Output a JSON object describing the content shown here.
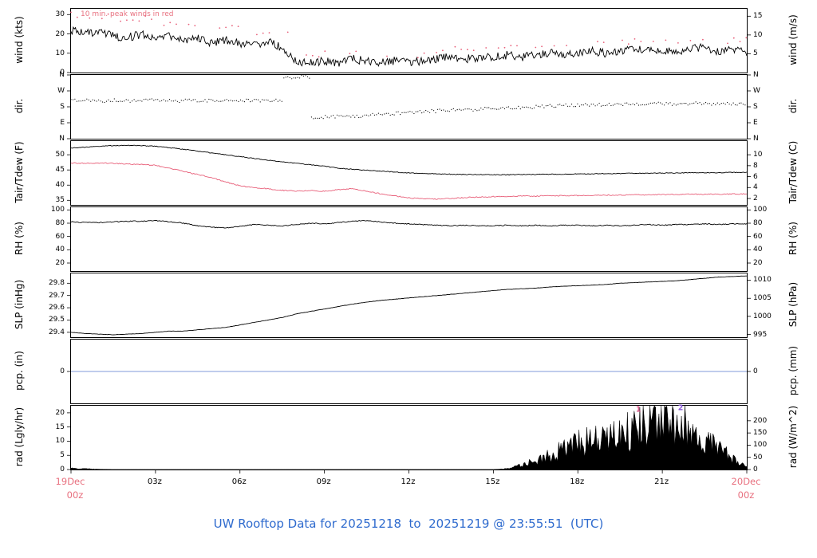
{
  "title": "UW Rooftop Data for 20251218  to  20251219 @ 23:55:51  (UTC)",
  "colors": {
    "title": "#2f6bce",
    "dates": "#e8707f",
    "peak_note": "#e8707f",
    "trace_black": "#000000",
    "dew_red": "#e8607a",
    "pcp_blue": "#8098d8"
  },
  "x_axis": {
    "ticks": [
      {
        "h": 3,
        "label": "03z"
      },
      {
        "h": 6,
        "label": "06z"
      },
      {
        "h": 9,
        "label": "09z"
      },
      {
        "h": 12,
        "label": "12z"
      },
      {
        "h": 15,
        "label": "15z"
      },
      {
        "h": 18,
        "label": "18z"
      },
      {
        "h": 21,
        "label": "21z"
      }
    ],
    "axis_tick_hours": [
      0,
      3,
      6,
      9,
      12,
      15,
      18,
      21,
      24
    ],
    "start_date": "19Dec",
    "start_time": "00z",
    "end_date": "20Dec",
    "end_time": "00z"
  },
  "chart_data": {
    "type": "line",
    "panels": [
      {
        "name": "wind",
        "left_label": "wind (kts)",
        "right_label": "wind (m/s)",
        "note": "10 min. peak winds in red",
        "ylim": [
          0,
          33
        ],
        "left_ticks": [
          {
            "v": 0,
            "label": "0"
          },
          {
            "v": 10,
            "label": "10"
          },
          {
            "v": 20,
            "label": "20"
          },
          {
            "v": 30,
            "label": "30"
          }
        ],
        "right_ticks": [
          {
            "v": 9.72,
            "label": "5"
          },
          {
            "v": 19.44,
            "label": "10"
          },
          {
            "v": 29.16,
            "label": "15"
          }
        ],
        "series": [
          {
            "name": "wind_speed_kts",
            "type": "line",
            "color": "#000000",
            "noise": 2.2,
            "values": [
              22,
              20,
              21,
              19,
              18,
              20,
              17,
              19,
              16,
              18,
              15,
              17,
              15,
              14,
              16,
              13,
              6,
              5,
              6,
              5,
              7,
              6,
              5,
              6,
              5,
              6,
              7,
              8,
              7,
              8,
              8,
              9,
              8,
              9,
              10,
              9,
              10,
              11,
              10,
              11,
              12,
              11,
              12,
              11,
              12,
              13,
              11,
              12,
              10
            ]
          },
          {
            "name": "peak_wind_kts",
            "type": "dots",
            "color": "#e8607a",
            "noise": 1.5,
            "dot_step": 0.22,
            "sparse": true,
            "r": 0.9,
            "values": [
              30,
              28,
              29,
              27,
              26,
              28,
              25,
              26,
              24,
              25,
              23,
              24,
              22,
              21,
              22,
              20,
              10,
              9,
              10,
              9,
              11,
              10,
              9,
              10,
              9,
              10,
              11,
              12,
              11,
              12,
              12,
              13,
              12,
              14,
              15,
              14,
              15,
              16,
              15,
              16,
              17,
              16,
              17,
              16,
              17,
              18,
              16,
              17,
              15
            ]
          }
        ]
      },
      {
        "name": "direction",
        "left_label": "dir.",
        "right_label": "dir.",
        "ylim": [
          0,
          360
        ],
        "left_ticks": [
          {
            "v": 0,
            "label": "N"
          },
          {
            "v": 90,
            "label": "E"
          },
          {
            "v": 180,
            "label": "S"
          },
          {
            "v": 270,
            "label": "W"
          },
          {
            "v": 360,
            "label": "N"
          }
        ],
        "right_ticks": [
          {
            "v": 0,
            "label": "N"
          },
          {
            "v": 90,
            "label": "E"
          },
          {
            "v": 180,
            "label": "S"
          },
          {
            "v": 270,
            "label": "W"
          },
          {
            "v": 360,
            "label": "N"
          }
        ],
        "series": [
          {
            "name": "wind_dir_deg",
            "type": "dots",
            "color": "#000000",
            "noise": 9,
            "dot_step": 0.07,
            "r": 0.6,
            "values": [
              215,
              218,
              213,
              216,
              214,
              217,
              215,
              212,
              216,
              214,
              213,
              217,
              215,
              214,
              216,
              345,
              350,
              120,
              125,
              130,
              128,
              135,
              140,
              145,
              150,
              155,
              158,
              162,
              165,
              170,
              172,
              175,
              178,
              182,
              185,
              188,
              190,
              192,
              195,
              193,
              196,
              198,
              195,
              197,
              199,
              196,
              198,
              197,
              195
            ]
          }
        ]
      },
      {
        "name": "temperature",
        "left_label": "Tair/Tdew (F)",
        "right_label": "Tair/Tdew (C)",
        "ylim": [
          33.5,
          54.5
        ],
        "left_ticks": [
          {
            "v": 35,
            "label": "35"
          },
          {
            "v": 40,
            "label": "40"
          },
          {
            "v": 45,
            "label": "45"
          },
          {
            "v": 50,
            "label": "50"
          }
        ],
        "right_ticks": [
          {
            "v": 35.6,
            "label": "2"
          },
          {
            "v": 39.2,
            "label": "4"
          },
          {
            "v": 42.8,
            "label": "6"
          },
          {
            "v": 46.4,
            "label": "8"
          },
          {
            "v": 50,
            "label": "10"
          }
        ],
        "series": [
          {
            "name": "tair_f",
            "type": "line",
            "color": "#000000",
            "noise": 0.12,
            "values": [
              52.2,
              52.5,
              52.8,
              53.0,
              53.1,
              53.0,
              52.8,
              52.3,
              51.8,
              51.2,
              50.6,
              50.0,
              49.4,
              48.8,
              48.2,
              47.7,
              47.2,
              46.7,
              46.2,
              45.6,
              45.2,
              44.9,
              44.6,
              44.3,
              44.0,
              43.8,
              43.7,
              43.6,
              43.5,
              43.5,
              43.4,
              43.4,
              43.5,
              43.5,
              43.6,
              43.6,
              43.7,
              43.7,
              43.8,
              43.8,
              43.9,
              43.9,
              44.0,
              44.0,
              44.1,
              44.1,
              44.1,
              44.2,
              44.2
            ]
          },
          {
            "name": "tdew_f",
            "type": "line",
            "color": "#e8607a",
            "noise": 0.16,
            "values": [
              47.3,
              47.2,
              47.3,
              47.2,
              47.0,
              46.8,
              46.5,
              45.5,
              44.5,
              43.5,
              42.5,
              41.0,
              39.8,
              39.2,
              38.8,
              38.3,
              38.0,
              38.2,
              38.0,
              38.5,
              38.8,
              38.0,
              37.2,
              36.5,
              35.8,
              35.5,
              35.4,
              35.6,
              35.9,
              36.1,
              36.2,
              36.3,
              36.4,
              36.4,
              36.5,
              36.5,
              36.6,
              36.6,
              36.7,
              36.7,
              36.8,
              36.8,
              36.9,
              36.9,
              37.0,
              37.0,
              37.0,
              37.1,
              37.1
            ]
          }
        ]
      },
      {
        "name": "relative_humidity",
        "left_label": "RH (%)",
        "right_label": "RH (%)",
        "ylim": [
          8,
          104
        ],
        "left_ticks": [
          {
            "v": 20,
            "label": "20"
          },
          {
            "v": 40,
            "label": "40"
          },
          {
            "v": 60,
            "label": "60"
          },
          {
            "v": 80,
            "label": "80"
          },
          {
            "v": 100,
            "label": "100"
          }
        ],
        "right_ticks": [
          {
            "v": 20,
            "label": "20"
          },
          {
            "v": 40,
            "label": "40"
          },
          {
            "v": 60,
            "label": "60"
          },
          {
            "v": 80,
            "label": "80"
          },
          {
            "v": 100,
            "label": "100"
          }
        ],
        "series": [
          {
            "name": "rh_pct",
            "type": "line",
            "color": "#000000",
            "noise": 0.7,
            "values": [
              82,
              81,
              81,
              82,
              83,
              83,
              84,
              82,
              80,
              76,
              74,
              73,
              75,
              78,
              77,
              76,
              78,
              80,
              79,
              81,
              83,
              84,
              82,
              80,
              79,
              78,
              77,
              76,
              77,
              76,
              76,
              77,
              76,
              77,
              76,
              77,
              77,
              76,
              77,
              76,
              77,
              78,
              77,
              78,
              78,
              79,
              78,
              79,
              79
            ]
          }
        ]
      },
      {
        "name": "sea_level_pressure",
        "left_label": "SLP (inHg)",
        "right_label": "SLP (hPa)",
        "ylim": [
          29.36,
          29.88
        ],
        "left_ticks": [
          {
            "v": 29.4,
            "label": "29.4"
          },
          {
            "v": 29.5,
            "label": "29.5"
          },
          {
            "v": 29.6,
            "label": "29.6"
          },
          {
            "v": 29.7,
            "label": "29.7"
          },
          {
            "v": 29.8,
            "label": "29.8"
          }
        ],
        "right_ticks": [
          {
            "v": 29.382,
            "label": "995"
          },
          {
            "v": 29.53,
            "label": "1000"
          },
          {
            "v": 29.677,
            "label": "1005"
          },
          {
            "v": 29.825,
            "label": "1010"
          }
        ],
        "series": [
          {
            "name": "slp_inhg",
            "type": "line",
            "color": "#000000",
            "noise": 0.0012,
            "values": [
              29.4,
              29.39,
              29.385,
              29.38,
              29.385,
              29.39,
              29.4,
              29.41,
              29.41,
              29.42,
              29.43,
              29.44,
              29.46,
              29.48,
              29.5,
              29.52,
              29.55,
              29.57,
              29.59,
              29.61,
              29.63,
              29.645,
              29.66,
              29.67,
              29.68,
              29.69,
              29.7,
              29.71,
              29.72,
              29.73,
              29.74,
              29.75,
              29.755,
              29.76,
              29.77,
              29.775,
              29.78,
              29.785,
              29.79,
              29.8,
              29.805,
              29.81,
              29.815,
              29.82,
              29.83,
              29.84,
              29.85,
              29.855,
              29.86
            ]
          }
        ]
      },
      {
        "name": "precipitation",
        "left_label": "pcp. (in)",
        "right_label": "pcp. (mm)",
        "ylim": [
          -1,
          1
        ],
        "left_ticks": [
          {
            "v": 0,
            "label": "0"
          }
        ],
        "right_ticks": [
          {
            "v": 0,
            "label": "0"
          }
        ],
        "series": [
          {
            "name": "pcp",
            "type": "line",
            "color": "#8098d8",
            "noise": 0,
            "values": [
              0,
              0
            ]
          }
        ]
      },
      {
        "name": "radiation",
        "left_label": "rad (Lgly/hr)",
        "right_label": "rad (W/m^2)",
        "ylim": [
          0,
          22.5
        ],
        "bottom_axis": true,
        "left_ticks": [
          {
            "v": 0,
            "label": "0"
          },
          {
            "v": 5,
            "label": "5"
          },
          {
            "v": 10,
            "label": "10"
          },
          {
            "v": 15,
            "label": "15"
          },
          {
            "v": 20,
            "label": "20"
          }
        ],
        "right_ticks": [
          {
            "v": 0,
            "label": "0"
          },
          {
            "v": 4.3,
            "label": "50"
          },
          {
            "v": 8.6,
            "label": "100"
          },
          {
            "v": 12.9,
            "label": "150"
          },
          {
            "v": 17.2,
            "label": "200"
          }
        ],
        "annotations": [
          {
            "t": 20.15,
            "v": 21.2,
            "label": "1",
            "color": "#d85a8a"
          },
          {
            "t": 21.65,
            "v": 21.6,
            "label": "2",
            "color": "#8a5ad8"
          }
        ],
        "series": [
          {
            "name": "rad_lgly_hr",
            "type": "area",
            "color": "#000000",
            "spiky": true,
            "values": [
              0.5,
              0.3,
              0.1,
              0,
              0,
              0,
              0,
              0,
              0,
              0,
              0,
              0,
              0,
              0,
              0,
              0,
              0,
              0,
              0,
              0,
              0,
              0,
              0,
              0,
              0,
              0,
              0,
              0,
              0,
              0,
              0,
              0.3,
              1.5,
              3,
              5,
              7,
              9,
              10,
              11,
              12,
              14,
              16,
              18,
              17,
              14,
              10,
              7,
              4,
              1
            ]
          }
        ]
      }
    ]
  }
}
